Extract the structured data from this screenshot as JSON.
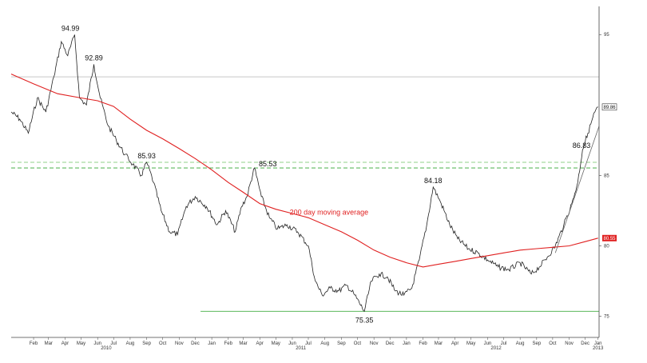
{
  "chart_data": {
    "type": "line",
    "title": "",
    "xlabel": "",
    "ylabel": "",
    "ylim": [
      73.5,
      97
    ],
    "x_range": [
      "2010-01-04",
      "2013-01-10"
    ],
    "y_ticks": [
      "95",
      "85",
      "80",
      "75"
    ],
    "x_month_labels": [
      {
        "label": "Feb",
        "date": "2010-02-15"
      },
      {
        "label": "Mar",
        "date": "2010-03-15"
      },
      {
        "label": "Apr",
        "date": "2010-04-15"
      },
      {
        "label": "May",
        "date": "2010-05-15"
      },
      {
        "label": "Jun",
        "date": "2010-06-15"
      },
      {
        "label": "Jul",
        "date": "2010-07-15"
      },
      {
        "label": "Aug",
        "date": "2010-08-15"
      },
      {
        "label": "Sep",
        "date": "2010-09-15"
      },
      {
        "label": "Oct",
        "date": "2010-10-15"
      },
      {
        "label": "Nov",
        "date": "2010-11-15"
      },
      {
        "label": "Dec",
        "date": "2010-12-15"
      },
      {
        "label": "Jan",
        "date": "2011-01-15"
      },
      {
        "label": "Feb",
        "date": "2011-02-15"
      },
      {
        "label": "Mar",
        "date": "2011-03-15"
      },
      {
        "label": "Apr",
        "date": "2011-04-15"
      },
      {
        "label": "May",
        "date": "2011-05-15"
      },
      {
        "label": "Jun",
        "date": "2011-06-15"
      },
      {
        "label": "Jul",
        "date": "2011-07-15"
      },
      {
        "label": "Aug",
        "date": "2011-08-15"
      },
      {
        "label": "Sep",
        "date": "2011-09-15"
      },
      {
        "label": "Oct",
        "date": "2011-10-15"
      },
      {
        "label": "Nov",
        "date": "2011-11-15"
      },
      {
        "label": "Dec",
        "date": "2011-12-15"
      },
      {
        "label": "Jan",
        "date": "2012-01-15"
      },
      {
        "label": "Feb",
        "date": "2012-02-15"
      },
      {
        "label": "Mar",
        "date": "2012-03-15"
      },
      {
        "label": "Apr",
        "date": "2012-04-15"
      },
      {
        "label": "May",
        "date": "2012-05-15"
      },
      {
        "label": "Jun",
        "date": "2012-06-15"
      },
      {
        "label": "Jul",
        "date": "2012-07-15"
      },
      {
        "label": "Aug",
        "date": "2012-08-15"
      },
      {
        "label": "Sep",
        "date": "2012-09-15"
      },
      {
        "label": "Oct",
        "date": "2012-10-15"
      },
      {
        "label": "Nov",
        "date": "2012-11-15"
      },
      {
        "label": "Dec",
        "date": "2012-12-15"
      },
      {
        "label": "Jan",
        "date": "2013-01-08"
      }
    ],
    "x_year_labels": [
      {
        "label": "2010",
        "date": "2010-07-01"
      },
      {
        "label": "2011",
        "date": "2011-07-01"
      },
      {
        "label": "2012",
        "date": "2012-07-01"
      },
      {
        "label": "2013",
        "date": "2013-01-08"
      }
    ],
    "series": [
      {
        "values": [
          {
            "x": "2010-01-04",
            "y": 89.5
          },
          {
            "x": "2010-01-20",
            "y": 89.0
          },
          {
            "x": "2010-02-05",
            "y": 88.0
          },
          {
            "x": "2010-02-22",
            "y": 90.5
          },
          {
            "x": "2010-03-10",
            "y": 89.5
          },
          {
            "x": "2010-03-25",
            "y": 92.0
          },
          {
            "x": "2010-04-08",
            "y": 94.5
          },
          {
            "x": "2010-04-20",
            "y": 93.5
          },
          {
            "x": "2010-05-03",
            "y": 94.99
          },
          {
            "x": "2010-05-12",
            "y": 90.5
          },
          {
            "x": "2010-05-25",
            "y": 90.0
          },
          {
            "x": "2010-06-08",
            "y": 92.89
          },
          {
            "x": "2010-06-20",
            "y": 90.5
          },
          {
            "x": "2010-07-05",
            "y": 88.5
          },
          {
            "x": "2010-07-20",
            "y": 87.5
          },
          {
            "x": "2010-08-05",
            "y": 86.5
          },
          {
            "x": "2010-08-20",
            "y": 85.8
          },
          {
            "x": "2010-09-05",
            "y": 85.0
          },
          {
            "x": "2010-09-15",
            "y": 85.93
          },
          {
            "x": "2010-09-28",
            "y": 84.5
          },
          {
            "x": "2010-10-12",
            "y": 82.5
          },
          {
            "x": "2010-10-28",
            "y": 81.0
          },
          {
            "x": "2010-11-12",
            "y": 80.8
          },
          {
            "x": "2010-11-28",
            "y": 82.8
          },
          {
            "x": "2010-12-15",
            "y": 83.5
          },
          {
            "x": "2011-01-05",
            "y": 82.8
          },
          {
            "x": "2011-01-25",
            "y": 81.5
          },
          {
            "x": "2011-02-10",
            "y": 82.5
          },
          {
            "x": "2011-02-28",
            "y": 81.0
          },
          {
            "x": "2011-03-12",
            "y": 82.8
          },
          {
            "x": "2011-03-22",
            "y": 83.5
          },
          {
            "x": "2011-04-05",
            "y": 85.53
          },
          {
            "x": "2011-04-18",
            "y": 83.5
          },
          {
            "x": "2011-05-03",
            "y": 82.0
          },
          {
            "x": "2011-05-18",
            "y": 81.2
          },
          {
            "x": "2011-06-05",
            "y": 81.5
          },
          {
            "x": "2011-06-25",
            "y": 81.0
          },
          {
            "x": "2011-07-15",
            "y": 80.0
          },
          {
            "x": "2011-07-28",
            "y": 77.5
          },
          {
            "x": "2011-08-10",
            "y": 76.5
          },
          {
            "x": "2011-08-25",
            "y": 77.0
          },
          {
            "x": "2011-09-10",
            "y": 76.8
          },
          {
            "x": "2011-09-25",
            "y": 77.2
          },
          {
            "x": "2011-10-10",
            "y": 76.5
          },
          {
            "x": "2011-10-28",
            "y": 75.35
          },
          {
            "x": "2011-11-10",
            "y": 77.5
          },
          {
            "x": "2011-11-25",
            "y": 78.0
          },
          {
            "x": "2011-12-10",
            "y": 77.8
          },
          {
            "x": "2011-12-25",
            "y": 76.8
          },
          {
            "x": "2012-01-10",
            "y": 76.5
          },
          {
            "x": "2012-01-25",
            "y": 77.0
          },
          {
            "x": "2012-02-08",
            "y": 79.0
          },
          {
            "x": "2012-02-22",
            "y": 81.5
          },
          {
            "x": "2012-03-05",
            "y": 84.18
          },
          {
            "x": "2012-03-20",
            "y": 83.0
          },
          {
            "x": "2012-04-05",
            "y": 81.5
          },
          {
            "x": "2012-04-20",
            "y": 80.5
          },
          {
            "x": "2012-05-10",
            "y": 79.8
          },
          {
            "x": "2012-05-28",
            "y": 79.5
          },
          {
            "x": "2012-06-15",
            "y": 79.0
          },
          {
            "x": "2012-07-05",
            "y": 78.5
          },
          {
            "x": "2012-07-25",
            "y": 78.3
          },
          {
            "x": "2012-08-15",
            "y": 78.8
          },
          {
            "x": "2012-09-05",
            "y": 78.0
          },
          {
            "x": "2012-09-20",
            "y": 78.5
          },
          {
            "x": "2012-10-05",
            "y": 79.2
          },
          {
            "x": "2012-10-20",
            "y": 80.0
          },
          {
            "x": "2012-11-05",
            "y": 81.5
          },
          {
            "x": "2012-11-20",
            "y": 83.0
          },
          {
            "x": "2012-12-01",
            "y": 84.5
          },
          {
            "x": "2012-12-10",
            "y": 86.83
          },
          {
            "x": "2012-12-20",
            "y": 88.0
          },
          {
            "x": "2013-01-02",
            "y": 89.5
          },
          {
            "x": "2013-01-08",
            "y": 89.86
          }
        ],
        "color": "#222222"
      },
      {
        "values": [
          {
            "x": "2010-01-04",
            "y": 92.2
          },
          {
            "x": "2010-02-15",
            "y": 91.5
          },
          {
            "x": "2010-04-01",
            "y": 90.8
          },
          {
            "x": "2010-05-15",
            "y": 90.5
          },
          {
            "x": "2010-06-15",
            "y": 90.3
          },
          {
            "x": "2010-07-15",
            "y": 89.9
          },
          {
            "x": "2010-08-15",
            "y": 89.0
          },
          {
            "x": "2010-09-15",
            "y": 88.2
          },
          {
            "x": "2010-10-15",
            "y": 87.6
          },
          {
            "x": "2010-11-15",
            "y": 86.9
          },
          {
            "x": "2010-12-15",
            "y": 86.2
          },
          {
            "x": "2011-01-15",
            "y": 85.4
          },
          {
            "x": "2011-02-15",
            "y": 84.5
          },
          {
            "x": "2011-03-15",
            "y": 83.8
          },
          {
            "x": "2011-04-15",
            "y": 83.0
          },
          {
            "x": "2011-05-15",
            "y": 82.6
          },
          {
            "x": "2011-06-15",
            "y": 82.3
          },
          {
            "x": "2011-07-15",
            "y": 82.0
          },
          {
            "x": "2011-08-15",
            "y": 81.5
          },
          {
            "x": "2011-09-15",
            "y": 81.0
          },
          {
            "x": "2011-10-15",
            "y": 80.4
          },
          {
            "x": "2011-11-15",
            "y": 79.7
          },
          {
            "x": "2011-12-15",
            "y": 79.2
          },
          {
            "x": "2012-01-15",
            "y": 78.8
          },
          {
            "x": "2012-02-15",
            "y": 78.5
          },
          {
            "x": "2012-03-15",
            "y": 78.7
          },
          {
            "x": "2012-04-15",
            "y": 78.9
          },
          {
            "x": "2012-05-15",
            "y": 79.1
          },
          {
            "x": "2012-06-15",
            "y": 79.3
          },
          {
            "x": "2012-07-15",
            "y": 79.5
          },
          {
            "x": "2012-08-15",
            "y": 79.7
          },
          {
            "x": "2012-09-15",
            "y": 79.8
          },
          {
            "x": "2012-10-15",
            "y": 79.9
          },
          {
            "x": "2012-11-15",
            "y": 80.0
          },
          {
            "x": "2012-12-15",
            "y": 80.3
          },
          {
            "x": "2013-01-08",
            "y": 80.55
          }
        ],
        "color": "#e02020"
      }
    ],
    "annotations": [
      "94.99",
      "92.89",
      "85.93",
      "85.53",
      "84.18",
      "75.35",
      "86.83"
    ],
    "moving_average_label": "200 day moving average",
    "last_price_tag": "89.86",
    "ma_price_tag": "80.55",
    "horizontal_lines": [
      {
        "y": 92.0,
        "style": "solid",
        "color": "#c8c8c8"
      },
      {
        "y": 85.93,
        "style": "dashed",
        "color": "#a6d9a0"
      },
      {
        "y": 85.53,
        "style": "dashed",
        "color": "#5cb85c"
      },
      {
        "y": 75.35,
        "style": "solid",
        "color": "#5cb85c",
        "from": "2010-12-25"
      }
    ],
    "trendline": {
      "from": {
        "x": "2012-10-20",
        "y": 79.5
      },
      "to": {
        "x": "2013-01-10",
        "y": 88.5
      },
      "color": "#666666"
    },
    "grid": false,
    "legend": "none"
  }
}
